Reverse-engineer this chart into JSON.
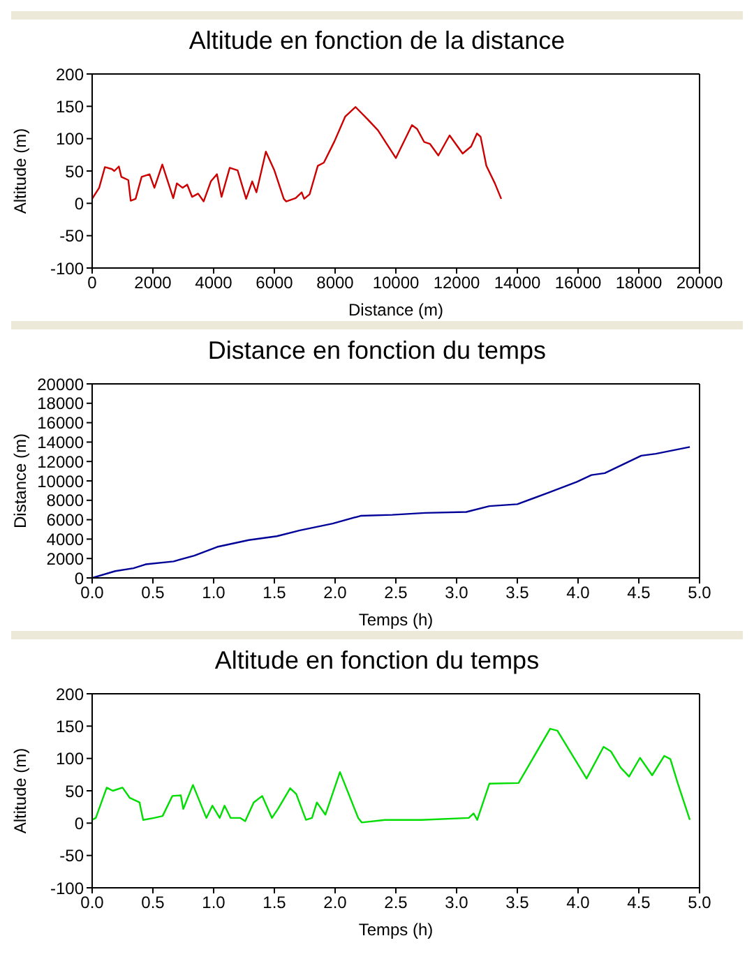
{
  "chart_data": [
    {
      "type": "line",
      "title": "Altitude en fonction de la distance",
      "xlabel": "Distance (m)",
      "ylabel": "Altitude (m)",
      "xlim": [
        0,
        20000
      ],
      "xticks": [
        0,
        2000,
        4000,
        6000,
        8000,
        10000,
        12000,
        14000,
        16000,
        18000,
        20000
      ],
      "ylim": [
        -100,
        200
      ],
      "yticks": [
        -100,
        -50,
        0,
        50,
        100,
        150,
        200
      ],
      "grid": false,
      "legend": false,
      "marker": "none",
      "line_style": "solid",
      "series": [
        {
          "color": "#cc0000",
          "x": [
            0,
            230,
            420,
            650,
            730,
            880,
            960,
            1190,
            1270,
            1430,
            1630,
            1890,
            2050,
            2310,
            2670,
            2790,
            2980,
            3130,
            3290,
            3490,
            3670,
            3910,
            4110,
            4260,
            4530,
            4790,
            5070,
            5270,
            5410,
            5720,
            6000,
            6310,
            6390,
            6700,
            6900,
            6980,
            7160,
            7430,
            7630,
            7980,
            8330,
            8670,
            9070,
            9410,
            10000,
            10530,
            10700,
            10930,
            11120,
            11400,
            11770,
            12200,
            12480,
            12670,
            12790,
            12980,
            13260,
            13470
          ],
          "values": [
            7,
            24,
            56,
            53,
            50,
            57,
            41,
            36,
            4,
            7,
            41,
            45,
            24,
            60,
            8,
            31,
            24,
            29,
            10,
            15,
            3,
            34,
            45,
            10,
            55,
            51,
            7,
            34,
            17,
            80,
            51,
            7,
            3,
            8,
            17,
            7,
            14,
            58,
            63,
            96,
            134,
            149,
            130,
            113,
            70,
            121,
            115,
            95,
            92,
            74,
            105,
            77,
            88,
            108,
            103,
            58,
            31,
            7
          ]
        }
      ]
    },
    {
      "type": "line",
      "title": "Distance en fonction du temps",
      "xlabel": "Temps (h)",
      "ylabel": "Distance (m)",
      "xlim": [
        0,
        5
      ],
      "xticks": [
        {
          "value": 0,
          "label": "0.0"
        },
        {
          "value": 0.5,
          "label": "0.5"
        },
        {
          "value": 1,
          "label": "1.0"
        },
        {
          "value": 1.5,
          "label": "1.5"
        },
        {
          "value": 2,
          "label": "2.0"
        },
        {
          "value": 2.5,
          "label": "2.5"
        },
        {
          "value": 3,
          "label": "3.0"
        },
        {
          "value": 3.5,
          "label": "3.5"
        },
        {
          "value": 4,
          "label": "4.0"
        },
        {
          "value": 4.5,
          "label": "4.5"
        },
        {
          "value": 5,
          "label": "5.0"
        }
      ],
      "ylim": [
        0,
        20000
      ],
      "yticks": [
        0,
        2000,
        4000,
        6000,
        8000,
        10000,
        12000,
        14000,
        16000,
        18000,
        20000
      ],
      "grid": false,
      "legend": false,
      "marker": "none",
      "line_style": "solid",
      "series": [
        {
          "color": "#000099",
          "x": [
            0,
            0.19,
            0.34,
            0.44,
            0.67,
            0.84,
            1.03,
            1.29,
            1.52,
            1.71,
            1.98,
            2.21,
            2.47,
            2.74,
            3.08,
            3.27,
            3.5,
            3.76,
            3.99,
            4.11,
            4.22,
            4.52,
            4.64,
            4.92
          ],
          "values": [
            0,
            700,
            1000,
            1400,
            1700,
            2300,
            3200,
            3900,
            4300,
            4900,
            5600,
            6400,
            6500,
            6700,
            6800,
            7400,
            7600,
            8800,
            9900,
            10600,
            10800,
            12600,
            12800,
            13500
          ]
        }
      ]
    },
    {
      "type": "line",
      "title": "Altitude en fonction du temps",
      "xlabel": "Temps (h)",
      "ylabel": "Altitude (m)",
      "xlim": [
        0,
        5
      ],
      "xticks": [
        {
          "value": 0,
          "label": "0.0"
        },
        {
          "value": 0.5,
          "label": "0.5"
        },
        {
          "value": 1,
          "label": "1.0"
        },
        {
          "value": 1.5,
          "label": "1.5"
        },
        {
          "value": 2,
          "label": "2.0"
        },
        {
          "value": 2.5,
          "label": "2.5"
        },
        {
          "value": 3,
          "label": "3.0"
        },
        {
          "value": 3.5,
          "label": "3.5"
        },
        {
          "value": 4,
          "label": "4.0"
        },
        {
          "value": 4.5,
          "label": "4.5"
        },
        {
          "value": 5,
          "label": "5.0"
        }
      ],
      "ylim": [
        -100,
        200
      ],
      "yticks": [
        -100,
        -50,
        0,
        50,
        100,
        150,
        200
      ],
      "grid": false,
      "legend": false,
      "marker": "none",
      "line_style": "solid",
      "series": [
        {
          "color": "#00dd00",
          "x": [
            0,
            0.03,
            0.12,
            0.17,
            0.25,
            0.31,
            0.39,
            0.42,
            0.51,
            0.58,
            0.66,
            0.73,
            0.75,
            0.83,
            0.94,
            0.99,
            1.05,
            1.09,
            1.14,
            1.22,
            1.26,
            1.33,
            1.4,
            1.48,
            1.53,
            1.63,
            1.68,
            1.76,
            1.81,
            1.85,
            1.92,
            2.04,
            2.19,
            2.22,
            2.41,
            2.71,
            3.1,
            3.14,
            3.17,
            3.27,
            3.51,
            3.77,
            3.83,
            4.07,
            4.21,
            4.27,
            4.35,
            4.42,
            4.51,
            4.61,
            4.71,
            4.76,
            4.82,
            4.92
          ],
          "values": [
            5,
            8,
            55,
            50,
            55,
            39,
            32,
            5,
            8,
            11,
            42,
            43,
            22,
            59,
            8,
            27,
            8,
            27,
            8,
            8,
            3,
            32,
            42,
            8,
            22,
            54,
            45,
            5,
            8,
            32,
            13,
            79,
            8,
            1,
            5,
            5,
            8,
            15,
            5,
            61,
            62,
            146,
            143,
            69,
            118,
            111,
            86,
            72,
            101,
            74,
            104,
            99,
            62,
            5
          ]
        }
      ]
    }
  ]
}
